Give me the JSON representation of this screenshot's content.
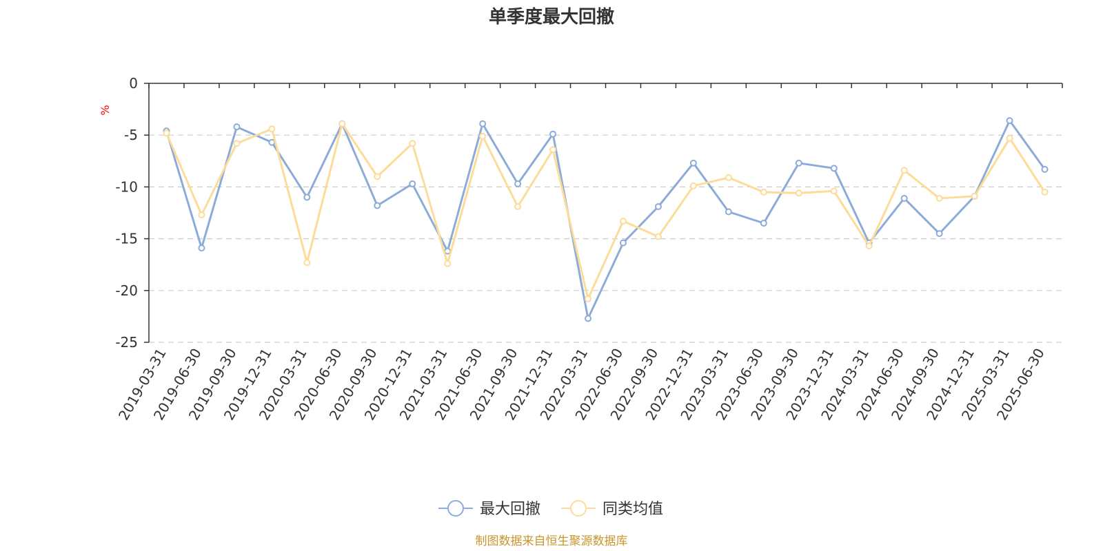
{
  "chart_data": {
    "type": "line",
    "title": "单季度最大回撤",
    "ylabel": "%",
    "ylim": [
      -25,
      0
    ],
    "yticks": [
      0,
      -5,
      -10,
      -15,
      -20,
      -25
    ],
    "grid": true,
    "legend_position": "bottom",
    "categories": [
      "2019-03-31",
      "2019-06-30",
      "2019-09-30",
      "2019-12-31",
      "2020-03-31",
      "2020-06-30",
      "2020-09-30",
      "2020-12-31",
      "2021-03-31",
      "2021-06-30",
      "2021-09-30",
      "2021-12-31",
      "2022-03-31",
      "2022-06-30",
      "2022-09-30",
      "2022-12-31",
      "2023-03-31",
      "2023-06-30",
      "2023-09-30",
      "2023-12-31",
      "2024-03-31",
      "2024-06-30",
      "2024-09-30",
      "2024-12-31",
      "2025-03-31",
      "2025-06-30"
    ],
    "series": [
      {
        "name": "最大回撤",
        "color": "#8dabd9",
        "values": [
          -4.6,
          -15.9,
          -4.2,
          -5.7,
          -11.0,
          -3.9,
          -11.8,
          -9.7,
          -16.2,
          -3.9,
          -9.7,
          -4.9,
          -22.7,
          -15.4,
          -11.9,
          -7.7,
          -12.4,
          -13.5,
          -7.7,
          -8.2,
          -15.4,
          -11.1,
          -14.5,
          -10.9,
          -3.6,
          -8.3
        ]
      },
      {
        "name": "同类均值",
        "color": "#fcdc98",
        "values": [
          -4.8,
          -12.7,
          -5.8,
          -4.4,
          -17.3,
          -3.9,
          -9.0,
          -5.8,
          -17.4,
          -5.1,
          -11.9,
          -6.4,
          -20.8,
          -13.3,
          -14.8,
          -9.9,
          -9.1,
          -10.5,
          -10.6,
          -10.4,
          -15.7,
          -8.4,
          -11.1,
          -10.9,
          -5.3,
          -10.5
        ]
      }
    ],
    "source": "制图数据来自恒生聚源数据库"
  }
}
